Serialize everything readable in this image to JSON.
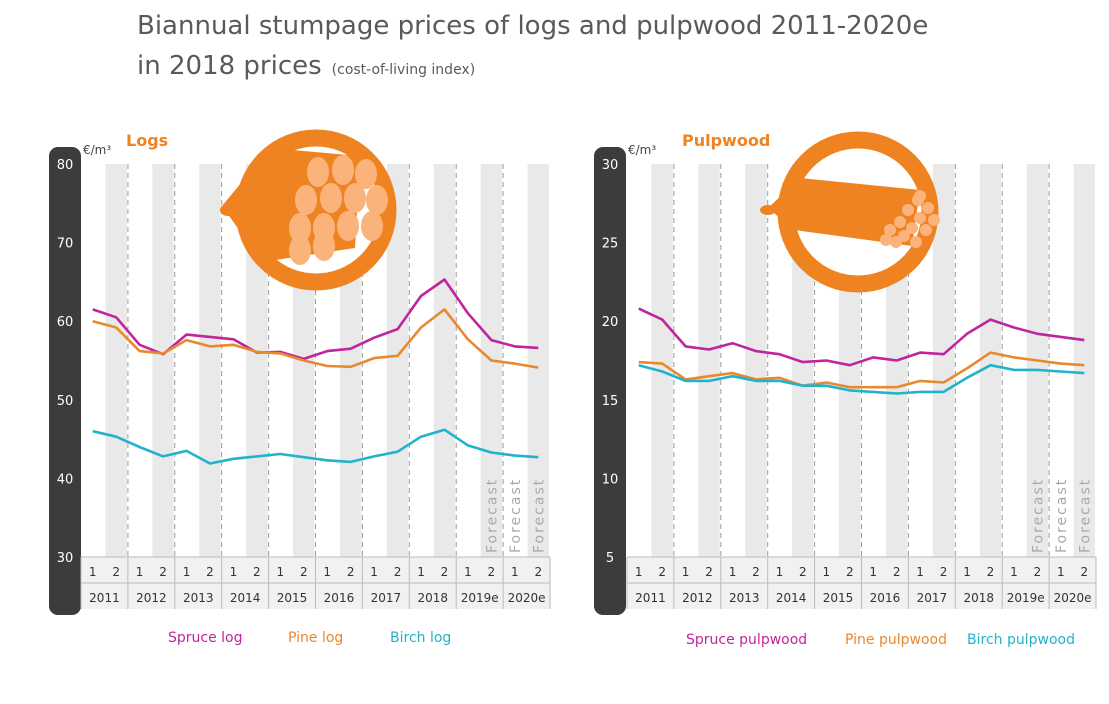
{
  "title": {
    "line1": "Biannual stumpage prices of logs and pulpwood 2011-2020e",
    "line2": "in 2018 prices",
    "subtitle": "(cost-of-living index)"
  },
  "colors": {
    "spruce": "#c0259c",
    "pine": "#e8892e",
    "birch": "#22b3cc",
    "accent": "#f08321",
    "axis_bar": "#3c3c3e",
    "forecast_text": "#a9a9a9"
  },
  "icons": [
    "log-bundle-icon",
    "pulpwood-bundle-icon"
  ],
  "chart_data": [
    {
      "type": "line",
      "title": "Logs",
      "ylabel": "€/m³",
      "ylim": [
        30,
        80
      ],
      "yticks": [
        30,
        40,
        50,
        60,
        70,
        80
      ],
      "x": [
        "1",
        "2",
        "1",
        "2",
        "1",
        "2",
        "1",
        "2",
        "1",
        "2",
        "1",
        "2",
        "1",
        "2",
        "1",
        "2",
        "1",
        "2",
        "1",
        "2"
      ],
      "years": [
        "2011",
        "2012",
        "2013",
        "2014",
        "2015",
        "2016",
        "2017",
        "2018",
        "2019e",
        "2020e"
      ],
      "forecast_label": "Forecast",
      "forecast_periods": [
        17,
        18,
        19
      ],
      "grid": "alternating shaded half-year columns",
      "series": [
        {
          "name": "Spruce log",
          "color": "#c0259c",
          "values": [
            61.5,
            60.5,
            57.0,
            55.8,
            58.3,
            58.0,
            57.7,
            56.0,
            56.1,
            55.2,
            56.2,
            56.5,
            57.9,
            59.0,
            63.2,
            65.3,
            61.0,
            57.6,
            56.8,
            56.6
          ]
        },
        {
          "name": "Pine log",
          "color": "#e8892e",
          "values": [
            60.0,
            59.2,
            56.2,
            55.9,
            57.6,
            56.8,
            57.0,
            56.1,
            55.9,
            55.0,
            54.3,
            54.2,
            55.3,
            55.6,
            59.2,
            61.5,
            57.7,
            55.0,
            54.6,
            54.1
          ]
        },
        {
          "name": "Birch log",
          "color": "#22b3cc",
          "values": [
            46.0,
            45.3,
            44.0,
            42.8,
            43.5,
            41.9,
            42.5,
            42.8,
            43.1,
            42.7,
            42.3,
            42.1,
            42.8,
            43.4,
            45.3,
            46.2,
            44.2,
            43.3,
            42.9,
            42.7
          ]
        }
      ]
    },
    {
      "type": "line",
      "title": "Pulpwood",
      "ylabel": "€/m³",
      "ylim": [
        5,
        30
      ],
      "yticks": [
        5,
        10,
        15,
        20,
        25,
        30
      ],
      "x": [
        "1",
        "2",
        "1",
        "2",
        "1",
        "2",
        "1",
        "2",
        "1",
        "2",
        "1",
        "2",
        "1",
        "2",
        "1",
        "2",
        "1",
        "2",
        "1",
        "2"
      ],
      "years": [
        "2011",
        "2012",
        "2013",
        "2014",
        "2015",
        "2016",
        "2017",
        "2018",
        "2019e",
        "2020e"
      ],
      "forecast_label": "Forecast",
      "forecast_periods": [
        17,
        18,
        19
      ],
      "grid": "alternating shaded half-year columns",
      "series": [
        {
          "name": "Spruce pulpwood",
          "color": "#c0259c",
          "values": [
            20.8,
            20.1,
            18.4,
            18.2,
            18.6,
            18.1,
            17.9,
            17.4,
            17.5,
            17.2,
            17.7,
            17.5,
            18.0,
            17.9,
            19.2,
            20.1,
            19.6,
            19.2,
            19.0,
            18.8
          ]
        },
        {
          "name": "Pine pulpwood",
          "color": "#e8892e",
          "values": [
            17.4,
            17.3,
            16.3,
            16.5,
            16.7,
            16.3,
            16.4,
            15.9,
            16.1,
            15.8,
            15.8,
            15.8,
            16.2,
            16.1,
            17.0,
            18.0,
            17.7,
            17.5,
            17.3,
            17.2
          ]
        },
        {
          "name": "Birch pulpwood",
          "color": "#22b3cc",
          "values": [
            17.2,
            16.8,
            16.2,
            16.2,
            16.5,
            16.2,
            16.2,
            15.9,
            15.9,
            15.6,
            15.5,
            15.4,
            15.5,
            15.5,
            16.4,
            17.2,
            16.9,
            16.9,
            16.8,
            16.7
          ]
        }
      ]
    }
  ]
}
